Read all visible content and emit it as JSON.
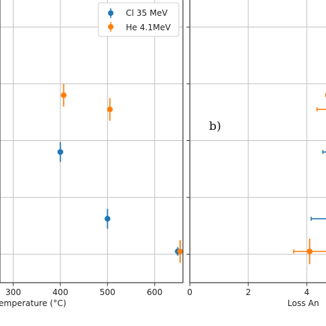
{
  "chart_data": [
    {
      "type": "scatter",
      "panel": "a",
      "xlabel": "Temperature (°C)",
      "xlabel_visible": "emperature (°C)",
      "x_ticks": [
        300,
        400,
        500,
        600
      ],
      "xlim": [
        272,
        660
      ],
      "ylim": [
        0,
        10
      ],
      "y_gridlines": [
        1.0,
        3.0,
        5.0,
        7.0,
        9.0
      ],
      "grid": true,
      "legend": "top-right",
      "series": [
        {
          "name": "Cl 35 MeV",
          "color": "#1f77b4",
          "points": [
            {
              "x": 400,
              "y": 4.6,
              "yerr": 0.35
            },
            {
              "x": 500,
              "y": 2.25,
              "yerr": 0.35
            },
            {
              "x": 649,
              "y": 1.1,
              "yerr": 0.15
            }
          ]
        },
        {
          "name": "He 4.1MeV",
          "color": "#ff7f0e",
          "points": [
            {
              "x": 407,
              "y": 6.6,
              "yerr": 0.4
            },
            {
              "x": 505,
              "y": 6.1,
              "yerr": 0.4
            },
            {
              "x": 654,
              "y": 1.1,
              "yerr": 0.4
            }
          ]
        }
      ]
    },
    {
      "type": "scatter",
      "panel": "b",
      "panel_label": "b)",
      "xlabel_visible": "Loss An",
      "x_ticks": [
        0,
        2,
        4
      ],
      "xlim": [
        0,
        4.94
      ],
      "ylim": [
        0,
        10
      ],
      "y_gridlines": [
        1.0,
        3.0,
        5.0,
        7.0,
        9.0
      ],
      "grid": true,
      "series": [
        {
          "name": "Cl 35 MeV",
          "color": "#1f77b4",
          "points": [
            {
              "y": 4.6,
              "x_from": 4.55,
              "x_to": 4.94
            },
            {
              "y": 2.25,
              "x_from": 4.15,
              "x_to": 4.94
            }
          ]
        },
        {
          "name": "He 4.1MeV",
          "color": "#ff7f0e",
          "points": [
            {
              "y": 6.6,
              "x_from": 4.65,
              "x_to": 4.94
            },
            {
              "y": 6.1,
              "x_from": 4.35,
              "x_to": 4.94
            },
            {
              "x": 4.1,
              "y": 1.1,
              "xerr_low": 0.55,
              "xerr_high": 0.84,
              "yerr": 0.45
            }
          ]
        }
      ]
    }
  ]
}
